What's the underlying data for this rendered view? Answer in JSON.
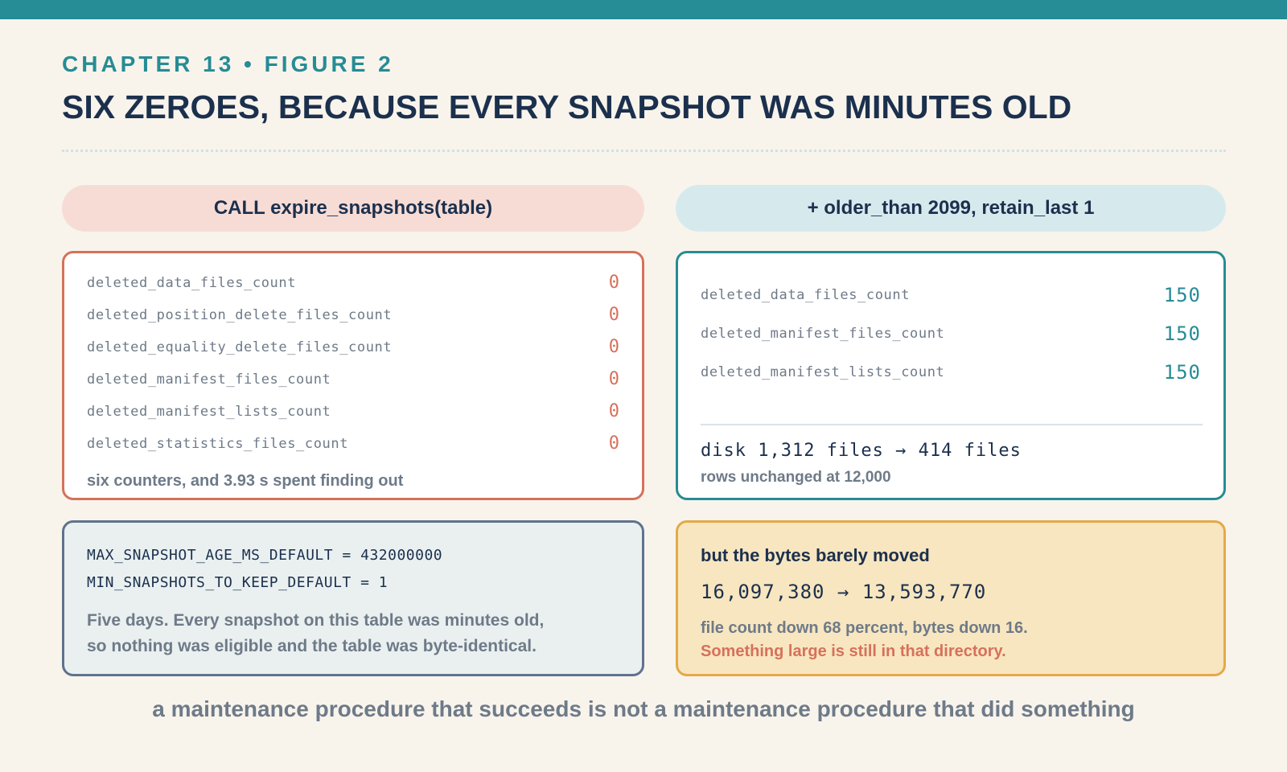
{
  "header": {
    "eyebrow": "CHAPTER 13 • FIGURE 2",
    "title": "SIX ZEROES, BECAUSE EVERY SNAPSHOT WAS MINUTES OLD"
  },
  "left_column": {
    "pill_label": "CALL expire_snapshots(table)",
    "counters": [
      {
        "name": "deleted_data_files_count",
        "value": "0"
      },
      {
        "name": "deleted_position_delete_files_count",
        "value": "0"
      },
      {
        "name": "deleted_equality_delete_files_count",
        "value": "0"
      },
      {
        "name": "deleted_manifest_files_count",
        "value": "0"
      },
      {
        "name": "deleted_manifest_lists_count",
        "value": "0"
      },
      {
        "name": "deleted_statistics_files_count",
        "value": "0"
      }
    ],
    "note": "six counters, and 3.93 s spent finding out"
  },
  "right_column": {
    "pill_label": "+ older_than 2099, retain_last 1",
    "counters": [
      {
        "name": "deleted_data_files_count",
        "value": "150"
      },
      {
        "name": "deleted_manifest_files_count",
        "value": "150"
      },
      {
        "name": "deleted_manifest_lists_count",
        "value": "150"
      }
    ],
    "disk_line": "disk 1,312 files → 414 files",
    "rows_line": "rows unchanged at 12,000"
  },
  "defaults_card": {
    "line1": "MAX_SNAPSHOT_AGE_MS_DEFAULT = 432000000",
    "line2": "MIN_SNAPSHOTS_TO_KEEP_DEFAULT = 1",
    "para1": "Five days. Every snapshot on this table was minutes old,",
    "para2": "so nothing was eligible and the table was byte-identical."
  },
  "bytes_card": {
    "heading": "but the bytes barely moved",
    "bytes_line": "16,097,380 → 13,593,770",
    "note1": "file count down 68 percent, bytes down 16.",
    "note2": "Something large is still in that directory."
  },
  "caption": "a maintenance procedure that succeeds is not a maintenance procedure that did something",
  "colors": {
    "accent_teal": "#268c95",
    "accent_red": "#d6715b",
    "navy": "#1b304d",
    "gold_border": "#e5a947"
  }
}
